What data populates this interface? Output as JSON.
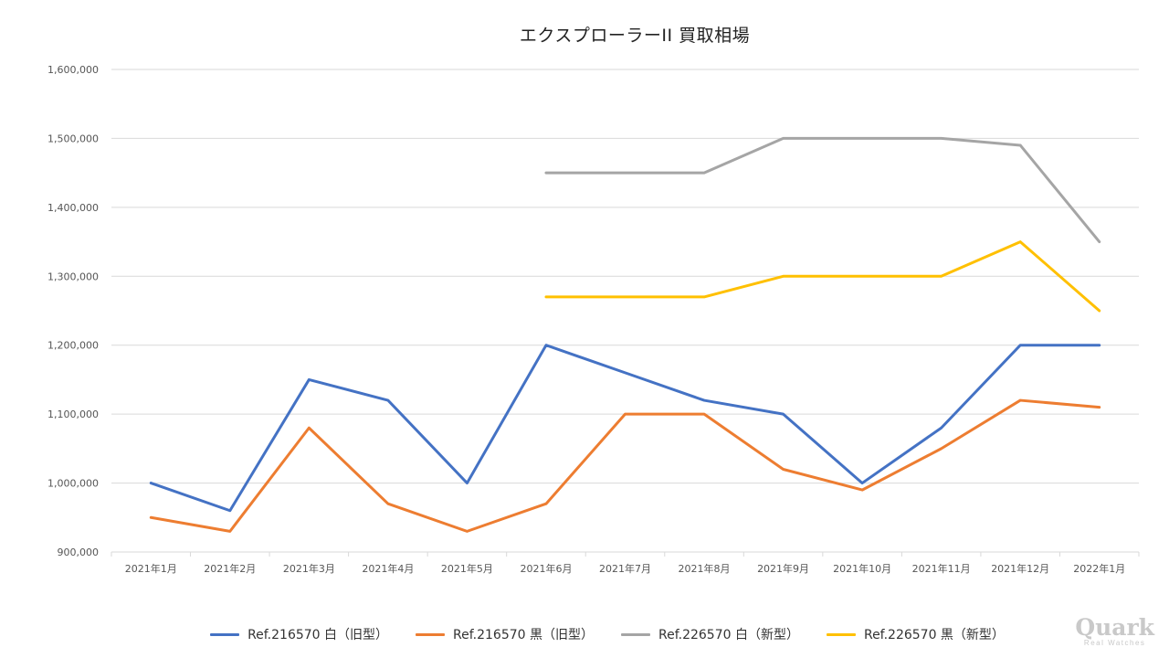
{
  "chart_data": {
    "type": "line",
    "title": "エクスプローラーII 買取相場",
    "xlabel": "",
    "ylabel": "",
    "categories": [
      "2021年1月",
      "2021年2月",
      "2021年3月",
      "2021年4月",
      "2021年5月",
      "2021年6月",
      "2021年7月",
      "2021年8月",
      "2021年9月",
      "2021年10月",
      "2021年11月",
      "2021年12月",
      "2022年1月"
    ],
    "ylim": [
      900000,
      1600000
    ],
    "yticks": [
      "900,000",
      "1,000,000",
      "1,100,000",
      "1,200,000",
      "1,300,000",
      "1,400,000",
      "1,500,000",
      "1,600,000"
    ],
    "ytick_values": [
      900000,
      1000000,
      1100000,
      1200000,
      1300000,
      1400000,
      1500000,
      1600000
    ],
    "grid": "horizontal",
    "legend": "bottom",
    "series": [
      {
        "name": "Ref.216570 白（旧型）",
        "color": "#4472C4",
        "values": [
          1000000,
          960000,
          1150000,
          1120000,
          1000000,
          1200000,
          1160000,
          1120000,
          1100000,
          1000000,
          1080000,
          1200000,
          1200000
        ]
      },
      {
        "name": "Ref.216570 黒（旧型）",
        "color": "#ED7D31",
        "values": [
          950000,
          930000,
          1080000,
          970000,
          930000,
          970000,
          1100000,
          1100000,
          1020000,
          990000,
          1050000,
          1120000,
          1110000
        ]
      },
      {
        "name": "Ref.226570 白（新型）",
        "color": "#A5A5A5",
        "values": [
          null,
          null,
          null,
          null,
          null,
          1450000,
          1450000,
          1450000,
          1500000,
          1500000,
          1500000,
          1490000,
          1350000
        ]
      },
      {
        "name": "Ref.226570 黒（新型）",
        "color": "#FFC000",
        "values": [
          null,
          null,
          null,
          null,
          null,
          1270000,
          1270000,
          1270000,
          1300000,
          1300000,
          1300000,
          1350000,
          1250000
        ]
      }
    ]
  },
  "watermark": {
    "main": "Quark",
    "sub": "Real Watches"
  }
}
